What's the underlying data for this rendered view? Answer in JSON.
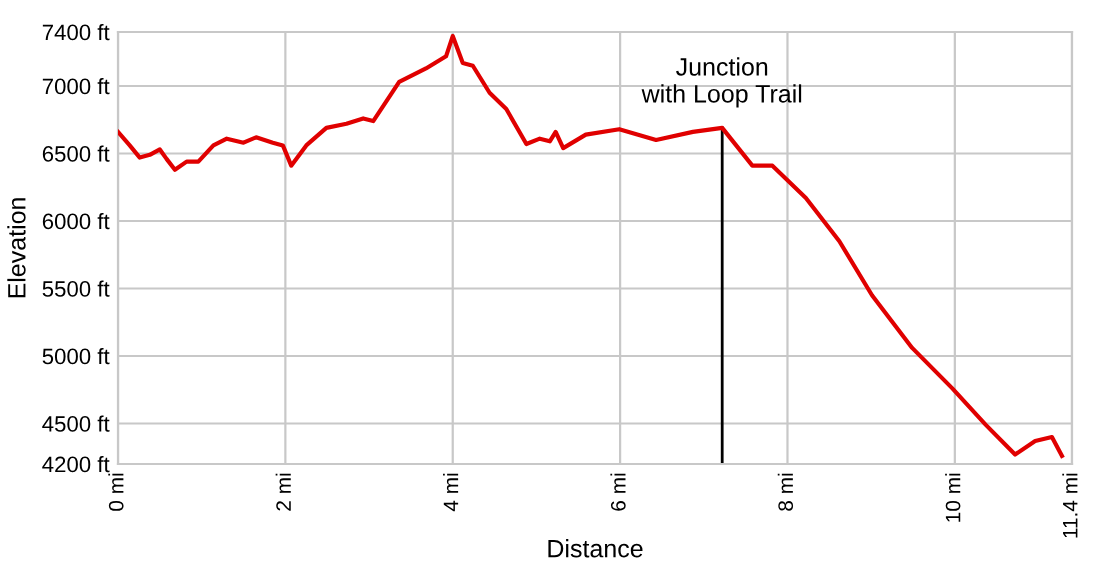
{
  "chart_data": {
    "type": "line",
    "xlabel": "Distance",
    "ylabel": "Elevation",
    "grid": true,
    "marker": "none",
    "line_style": "solid",
    "xlim": [
      0,
      11.4
    ],
    "ylim": [
      4200,
      7400
    ],
    "xticks": [
      {
        "value": 0,
        "label": "0 mi"
      },
      {
        "value": 2,
        "label": "2 mi"
      },
      {
        "value": 4,
        "label": "4 mi"
      },
      {
        "value": 6,
        "label": "6 mi"
      },
      {
        "value": 8,
        "label": "8 mi"
      },
      {
        "value": 10,
        "label": "10 mi"
      },
      {
        "value": 11.4,
        "label": "11.4 mi"
      }
    ],
    "yticks": [
      {
        "value": 4200,
        "label": "4200 ft"
      },
      {
        "value": 4500,
        "label": "4500 ft"
      },
      {
        "value": 5000,
        "label": "5000 ft"
      },
      {
        "value": 5500,
        "label": "5500 ft"
      },
      {
        "value": 6000,
        "label": "6000 ft"
      },
      {
        "value": 6500,
        "label": "6500 ft"
      },
      {
        "value": 7000,
        "label": "7000 ft"
      },
      {
        "value": 7400,
        "label": "7400 ft"
      }
    ],
    "series": [
      {
        "color": "#e00000",
        "x": [
          0,
          0.14,
          0.26,
          0.38,
          0.5,
          0.58,
          0.68,
          0.82,
          0.96,
          1.14,
          1.3,
          1.5,
          1.65,
          1.85,
          1.97,
          2.07,
          2.25,
          2.49,
          2.73,
          2.93,
          3.05,
          3.36,
          3.68,
          3.92,
          4.0,
          4.12,
          4.24,
          4.44,
          4.64,
          4.88,
          5.04,
          5.16,
          5.23,
          5.32,
          5.59,
          5.99,
          6.43,
          6.87,
          7.22,
          7.58,
          7.82,
          8.22,
          8.62,
          9.01,
          9.49,
          9.97,
          10.37,
          10.72,
          10.96,
          11.16,
          11.28
        ],
        "values": [
          6660,
          6560,
          6470,
          6490,
          6530,
          6460,
          6380,
          6440,
          6440,
          6560,
          6610,
          6580,
          6620,
          6580,
          6560,
          6410,
          6560,
          6690,
          6720,
          6760,
          6740,
          7030,
          7130,
          7220,
          7370,
          7170,
          7150,
          6950,
          6830,
          6570,
          6610,
          6590,
          6660,
          6540,
          6640,
          6680,
          6600,
          6660,
          6690,
          6410,
          6410,
          6170,
          5850,
          5450,
          5060,
          4760,
          4490,
          4270,
          4370,
          4400,
          4260
        ]
      }
    ],
    "ref_lines": [
      {
        "axis": "x",
        "value": 7.22,
        "label": "Junction\nwith Loop Trail",
        "color": "#000000"
      }
    ]
  }
}
